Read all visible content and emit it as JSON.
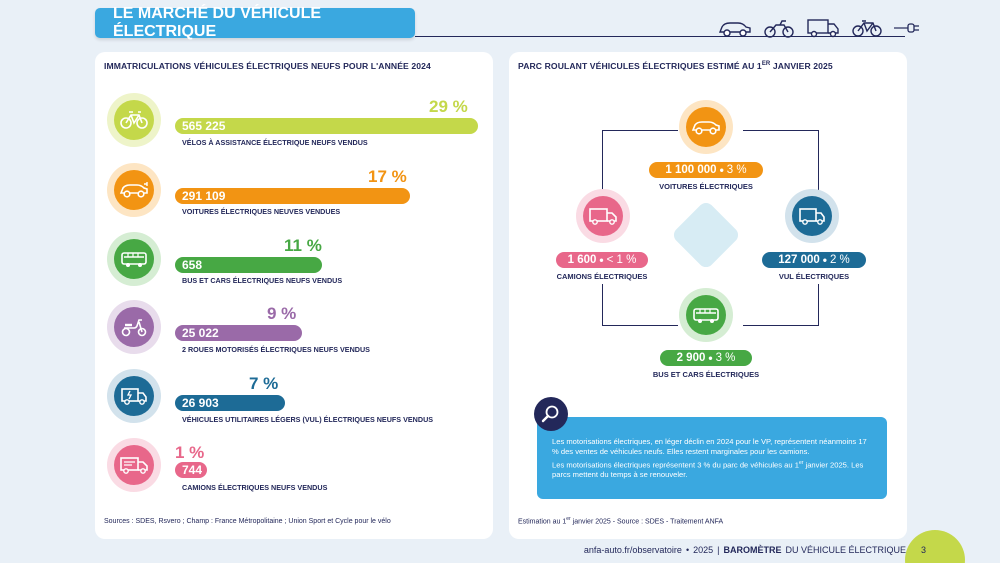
{
  "header": {
    "title": "LE MARCHÉ DU VÉHICULE ÉLECTRIQUE",
    "icons": [
      "car-icon",
      "motorbike-icon",
      "truck-icon",
      "bicycle-icon",
      "plug-icon"
    ]
  },
  "left": {
    "title": "IMMATRICULATIONS VÉHICULES ÉLECTRIQUES NEUFS POUR L'ANNÉE 2024",
    "rows": [
      {
        "icon": "bicycle-icon",
        "value": "565 225",
        "percent": "29 %",
        "label": "VÉLOS À ASSISTANCE ÉLECTRIQUE NEUFS VENDUS",
        "color": "#c4d84a",
        "icon_bg": "#c4d84a"
      },
      {
        "icon": "car-icon",
        "value": "291 109",
        "percent": "17 %",
        "label": "VOITURES ÉLECTRIQUES NEUVES VENDUES",
        "color": "#f29413",
        "icon_bg": "#f29413"
      },
      {
        "icon": "bus-icon",
        "value": "658",
        "percent": "11 %",
        "label": "BUS ET CARS ÉLECTRIQUES NEUFS VENDUS",
        "color": "#47a844",
        "icon_bg": "#47a844"
      },
      {
        "icon": "scooter-icon",
        "value": "25 022",
        "percent": "9 %",
        "label": "2 ROUES MOTORISÉS ÉLECTRIQUES NEUFS VENDUS",
        "color": "#9a6aa8",
        "icon_bg": "#9a6aa8"
      },
      {
        "icon": "van-icon",
        "value": "26 903",
        "percent": "7 %",
        "label": "VÉHICULES UTILITAIRES LÉGERS (VUL) ÉLECTRIQUES NEUFS VENDUS",
        "color": "#1d6b96",
        "icon_bg": "#1d6b96"
      },
      {
        "icon": "truck-icon",
        "value": "744",
        "percent": "1 %",
        "label": "CAMIONS ÉLECTRIQUES NEUFS VENDUS",
        "color": "#e8678a",
        "icon_bg": "#e8678a"
      }
    ],
    "source": "Sources : SDES, Rsvero ; Champ : France Métropolitaine ; Union Sport et Cycle pour le vélo"
  },
  "right": {
    "title_part1": "PARC ROULANT VÉHICULES ÉLECTRIQUES ESTIMÉ AU 1",
    "title_sup": "ER",
    "title_part2": " JANVIER 2025",
    "nodes": {
      "voitures": {
        "value": "1 100 000",
        "share": "3 %",
        "label": "VOITURES ÉLECTRIQUES",
        "color": "#f29413"
      },
      "camions": {
        "value": "1 600",
        "share": "< 1 %",
        "label": "CAMIONS ÉLECTRIQUES",
        "color": "#e8678a"
      },
      "vul": {
        "value": "127 000",
        "share": "2 %",
        "label": "VUL ÉLECTRIQUES",
        "color": "#1d6b96"
      },
      "bus": {
        "value": "2 900",
        "share": "3 %",
        "label": "BUS ET CARS ÉLECTRIQUES",
        "color": "#47a844"
      }
    },
    "info": {
      "p1": "Les motorisations électriques, en léger déclin en 2024 pour le VP, représentent néanmoins 17 % des ventes de véhicules neufs. Elles restent marginales pour les camions.",
      "p2_a": "Les motorisations électriques représentent 3 % du parc de véhicules au 1",
      "p2_sup": "er",
      "p2_b": " janvier 2025. Les parcs mettent du temps à se renouveler."
    },
    "source_a": "Estimation au 1",
    "source_sup": "er",
    "source_b": " janvier 2025 - Source : SDES - Traitement ANFA"
  },
  "footer": {
    "url": "anfa-auto.fr/observatoire",
    "bullet": "•",
    "year": "2025",
    "sep": "|",
    "brand_bold": "BAROMÈTRE",
    "brand_rest": "DU VÉHICULE ÉLECTRIQUE",
    "page": "3"
  }
}
